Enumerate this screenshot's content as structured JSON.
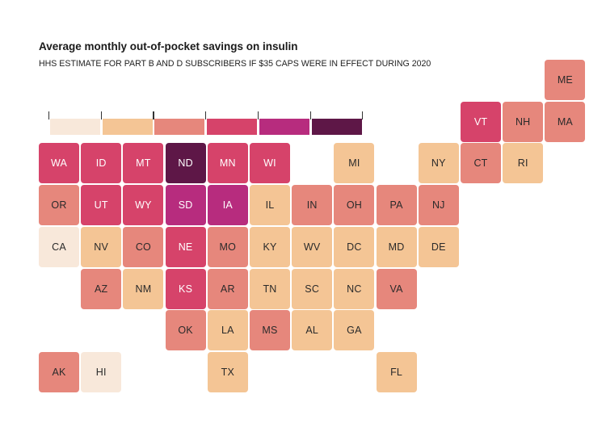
{
  "title": "Average monthly out-of-pocket savings on insulin",
  "subtitle": "HHS ESTIMATE FOR PART B AND D SUBSCRIBERS IF $35 CAPS WERE IN EFFECT DURING 2020",
  "legend": {
    "bins": 6,
    "colors": [
      "#f8e8da",
      "#f4c595",
      "#e6877c",
      "#d6436a",
      "#b72c7e",
      "#5e1747"
    ]
  },
  "states": [
    {
      "abbr": "ME",
      "bin": 2
    },
    {
      "abbr": "VT",
      "bin": 3
    },
    {
      "abbr": "NH",
      "bin": 2
    },
    {
      "abbr": "MA",
      "bin": 2
    },
    {
      "abbr": "WA",
      "bin": 3
    },
    {
      "abbr": "ID",
      "bin": 3
    },
    {
      "abbr": "MT",
      "bin": 3
    },
    {
      "abbr": "ND",
      "bin": 5
    },
    {
      "abbr": "MN",
      "bin": 3
    },
    {
      "abbr": "WI",
      "bin": 3
    },
    {
      "abbr": "MI",
      "bin": 1
    },
    {
      "abbr": "NY",
      "bin": 1
    },
    {
      "abbr": "CT",
      "bin": 2
    },
    {
      "abbr": "RI",
      "bin": 1
    },
    {
      "abbr": "OR",
      "bin": 2
    },
    {
      "abbr": "UT",
      "bin": 3
    },
    {
      "abbr": "WY",
      "bin": 3
    },
    {
      "abbr": "SD",
      "bin": 4
    },
    {
      "abbr": "IA",
      "bin": 4
    },
    {
      "abbr": "IL",
      "bin": 1
    },
    {
      "abbr": "IN",
      "bin": 2
    },
    {
      "abbr": "OH",
      "bin": 2
    },
    {
      "abbr": "PA",
      "bin": 2
    },
    {
      "abbr": "NJ",
      "bin": 2
    },
    {
      "abbr": "CA",
      "bin": 0
    },
    {
      "abbr": "NV",
      "bin": 1
    },
    {
      "abbr": "CO",
      "bin": 2
    },
    {
      "abbr": "NE",
      "bin": 3
    },
    {
      "abbr": "MO",
      "bin": 2
    },
    {
      "abbr": "KY",
      "bin": 1
    },
    {
      "abbr": "WV",
      "bin": 1
    },
    {
      "abbr": "DC",
      "bin": 1
    },
    {
      "abbr": "MD",
      "bin": 1
    },
    {
      "abbr": "DE",
      "bin": 1
    },
    {
      "abbr": "AZ",
      "bin": 2
    },
    {
      "abbr": "NM",
      "bin": 1
    },
    {
      "abbr": "KS",
      "bin": 3
    },
    {
      "abbr": "AR",
      "bin": 2
    },
    {
      "abbr": "TN",
      "bin": 1
    },
    {
      "abbr": "SC",
      "bin": 1
    },
    {
      "abbr": "NC",
      "bin": 1
    },
    {
      "abbr": "VA",
      "bin": 2
    },
    {
      "abbr": "OK",
      "bin": 2
    },
    {
      "abbr": "LA",
      "bin": 1
    },
    {
      "abbr": "MS",
      "bin": 2
    },
    {
      "abbr": "AL",
      "bin": 1
    },
    {
      "abbr": "GA",
      "bin": 1
    },
    {
      "abbr": "AK",
      "bin": 2
    },
    {
      "abbr": "HI",
      "bin": 0
    },
    {
      "abbr": "TX",
      "bin": 1
    },
    {
      "abbr": "FL",
      "bin": 1
    }
  ]
}
